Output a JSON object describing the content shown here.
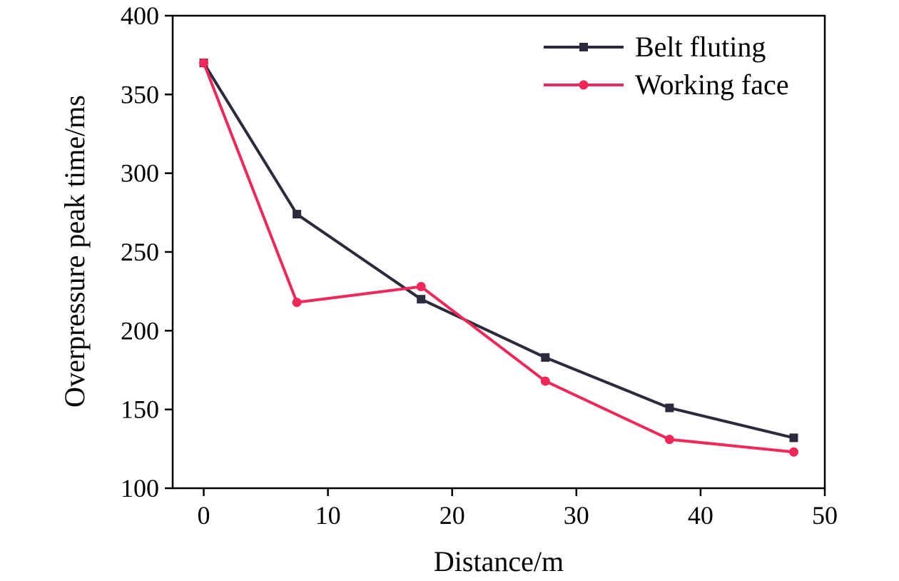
{
  "chart_data": {
    "type": "line",
    "title": "",
    "xlabel": "Distance/m",
    "ylabel": "Overpressure peak time/ms",
    "xlim": [
      -2.5,
      50
    ],
    "ylim": [
      100,
      400
    ],
    "xticks": [
      0,
      10,
      20,
      30,
      40,
      50
    ],
    "yticks": [
      100,
      150,
      200,
      250,
      300,
      350,
      400
    ],
    "grid": false,
    "legend_position": "top-right",
    "series": [
      {
        "name": "Belt fluting",
        "color": "#2b2b3d",
        "marker": "square",
        "x": [
          0,
          7.5,
          17.5,
          27.5,
          37.5,
          47.5
        ],
        "y": [
          370,
          274,
          220,
          183,
          151,
          132
        ]
      },
      {
        "name": "Working face",
        "color": "#f0285a",
        "marker": "circle",
        "x": [
          0,
          7.5,
          17.5,
          27.5,
          37.5,
          47.5
        ],
        "y": [
          370,
          218,
          228,
          168,
          131,
          123
        ]
      }
    ]
  }
}
